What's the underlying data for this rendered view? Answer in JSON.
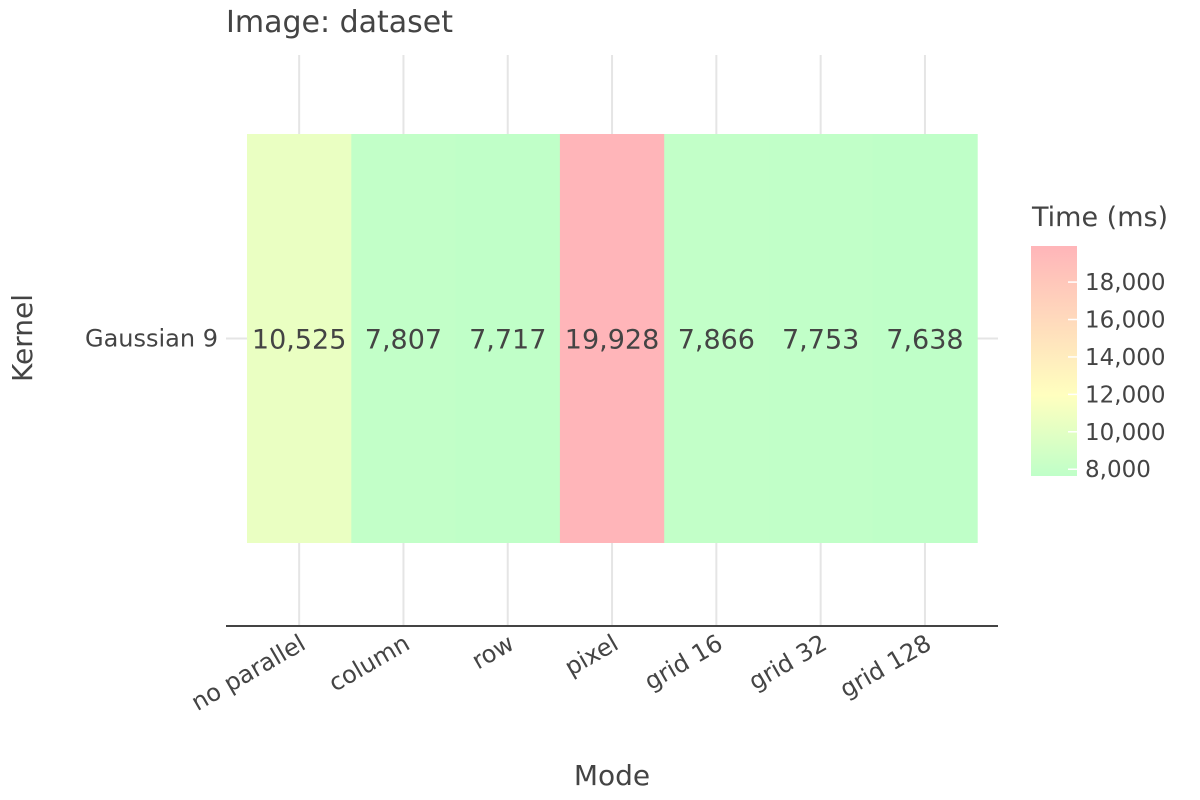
{
  "chart_data": {
    "type": "heatmap",
    "title": "Image: dataset",
    "xlabel": "Mode",
    "ylabel": "Kernel",
    "x_categories": [
      "no parallel",
      "column",
      "row",
      "pixel",
      "grid 16",
      "grid 32",
      "grid 128"
    ],
    "y_categories": [
      "Gaussian 9"
    ],
    "values": [
      [
        10525,
        7807,
        7717,
        19928,
        7866,
        7753,
        7638
      ]
    ],
    "value_labels": [
      [
        "10,525",
        "7,807",
        "7,717",
        "19,928",
        "7,866",
        "7,753",
        "7,638"
      ]
    ],
    "colorbar": {
      "title": "Time (ms)",
      "ticks": [
        8000,
        10000,
        12000,
        14000,
        16000,
        18000
      ],
      "tick_labels": [
        "8,000",
        "10,000",
        "12,000",
        "14,000",
        "16,000",
        "18,000"
      ],
      "range": [
        7638,
        19928
      ],
      "colors": [
        "#bfffc8",
        "#ffffbf",
        "#ffb5b9"
      ]
    },
    "grid": true,
    "legend_position": "right"
  }
}
